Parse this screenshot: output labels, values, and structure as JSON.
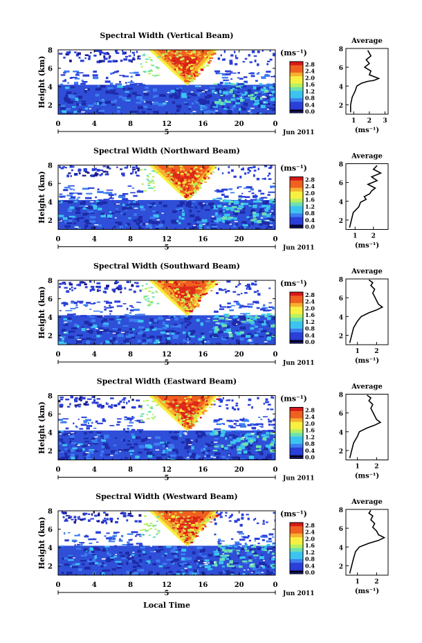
{
  "figure": {
    "xlabel": "Local Time",
    "day_label": "5",
    "date_label": "Jun 2011",
    "ylabel": "Height (km)",
    "colorbar_unit": "(ms⁻¹)",
    "avg_title": "Average",
    "avg_xlabel": "(ms⁻¹)",
    "colorbar_ticks": [
      "2.8",
      "2.4",
      "2.0",
      "1.6",
      "1.2",
      "0.8",
      "0.4",
      "0.0"
    ],
    "x_ticks": [
      "0",
      "4",
      "8",
      "12",
      "16",
      "20",
      "0"
    ],
    "y_ticks": [
      "8",
      "6",
      "4",
      "2"
    ],
    "avg_y_ticks": [
      "8",
      "6",
      "4",
      "2"
    ],
    "colors": {
      "scale": [
        "#1a1a8c",
        "#2a3fd8",
        "#3d7df0",
        "#3cc4f0",
        "#6de0b0",
        "#b8f060",
        "#f8f040",
        "#f8b030",
        "#f06020",
        "#d81818"
      ],
      "low_band": "#2f4fd8",
      "dark_band": "#1e2aa8"
    }
  },
  "chart_data": [
    {
      "type": "heatmap",
      "title": "Spectral Width (Vertical Beam)",
      "x_range": [
        0,
        24
      ],
      "y_range": [
        1,
        8
      ],
      "avg_profile": {
        "x": [
          0.8,
          0.8,
          0.9,
          1.1,
          1.2,
          1.5,
          1.9,
          2.3,
          2.6,
          2.0,
          2.1,
          1.7,
          2.0,
          1.8,
          2.1,
          1.9
        ],
        "y": [
          1.2,
          2,
          2.8,
          3.5,
          4.0,
          4.3,
          4.5,
          4.6,
          4.8,
          5.2,
          5.6,
          6.0,
          6.4,
          6.8,
          7.2,
          7.8
        ],
        "xlim": [
          0.5,
          3.2
        ],
        "x_ticks": [
          "1",
          "2",
          "3"
        ]
      }
    },
    {
      "type": "heatmap",
      "title": "Spectral Width (Northward Beam)",
      "x_range": [
        0,
        24
      ],
      "y_range": [
        1,
        8
      ],
      "avg_profile": {
        "x": [
          0.7,
          0.8,
          0.9,
          1.2,
          1.3,
          1.6,
          1.5,
          1.8,
          1.9,
          2.1,
          1.7,
          2.2,
          1.9,
          2.4,
          2.0,
          2.2
        ],
        "y": [
          1.2,
          2,
          2.8,
          3.4,
          3.9,
          4.2,
          4.5,
          4.8,
          5.1,
          5.4,
          5.8,
          6.2,
          6.6,
          7.0,
          7.4,
          7.8
        ],
        "xlim": [
          0.5,
          2.8
        ],
        "x_ticks": [
          "1",
          "2"
        ]
      }
    },
    {
      "type": "heatmap",
      "title": "Spectral Width (Southward Beam)",
      "x_range": [
        0,
        24
      ],
      "y_range": [
        1,
        8
      ],
      "avg_profile": {
        "x": [
          0.6,
          0.7,
          0.8,
          1.0,
          1.2,
          1.6,
          2.0,
          2.3,
          2.1,
          2.0,
          1.9,
          1.8,
          1.9,
          1.7,
          1.8,
          1.6
        ],
        "y": [
          1.2,
          2,
          2.8,
          3.5,
          4.0,
          4.4,
          4.7,
          5.0,
          5.3,
          5.7,
          6.1,
          6.5,
          6.9,
          7.3,
          7.6,
          7.9
        ],
        "xlim": [
          0.4,
          2.6
        ],
        "x_ticks": [
          "1",
          "2"
        ]
      }
    },
    {
      "type": "heatmap",
      "title": "Spectral Width (Eastward Beam)",
      "x_range": [
        0,
        24
      ],
      "y_range": [
        1,
        8
      ],
      "avg_profile": {
        "x": [
          0.6,
          0.7,
          0.8,
          1.0,
          1.1,
          1.5,
          1.9,
          2.2,
          2.0,
          1.9,
          1.8,
          1.7,
          1.8,
          1.6,
          1.7,
          1.5
        ],
        "y": [
          1.2,
          2,
          2.8,
          3.5,
          4.0,
          4.4,
          4.7,
          5.0,
          5.3,
          5.7,
          6.1,
          6.5,
          6.9,
          7.3,
          7.6,
          7.9
        ],
        "xlim": [
          0.4,
          2.6
        ],
        "x_ticks": [
          "1",
          "2"
        ]
      }
    },
    {
      "type": "heatmap",
      "title": "Spectral Width (Westward Beam)",
      "x_range": [
        0,
        24
      ],
      "y_range": [
        1,
        8
      ],
      "avg_profile": {
        "x": [
          0.6,
          0.7,
          0.8,
          0.9,
          1.1,
          1.6,
          2.1,
          2.4,
          2.1,
          2.0,
          1.8,
          1.9,
          1.7,
          1.8,
          1.6,
          1.7
        ],
        "y": [
          1.2,
          2,
          2.8,
          3.5,
          4.0,
          4.4,
          4.7,
          5.0,
          5.3,
          5.7,
          6.1,
          6.5,
          6.9,
          7.3,
          7.6,
          7.9
        ],
        "xlim": [
          0.4,
          2.6
        ],
        "x_ticks": [
          "1",
          "2"
        ]
      }
    }
  ]
}
